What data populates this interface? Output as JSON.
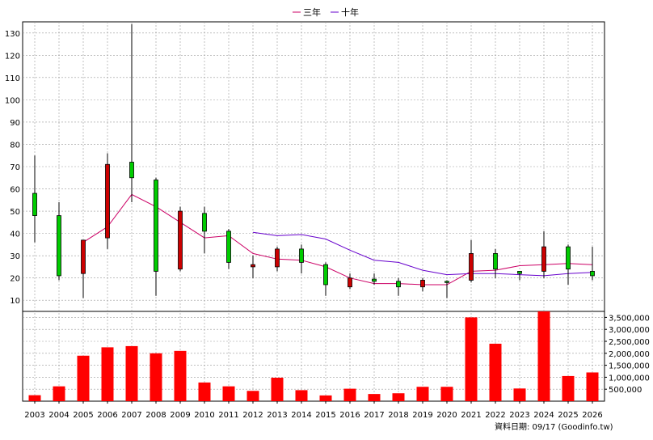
{
  "chart_data": {
    "type": "candlestick_with_volume",
    "legend": [
      {
        "label": "三年",
        "color": "#cc0066"
      },
      {
        "label": "十年",
        "color": "#6600cc"
      }
    ],
    "categories": [
      "2003",
      "2004",
      "2005",
      "2006",
      "2007",
      "2008",
      "2009",
      "2010",
      "2011",
      "2012",
      "2013",
      "2014",
      "2015",
      "2016",
      "2017",
      "2018",
      "2019",
      "2020",
      "2021",
      "2022",
      "2023",
      "2024",
      "2025",
      "2026"
    ],
    "price_axis": {
      "ticks": [
        10,
        20,
        30,
        40,
        50,
        60,
        70,
        80,
        90,
        100,
        110,
        120,
        130
      ],
      "ylim": [
        5,
        135
      ]
    },
    "volume_axis": {
      "ticks": [
        500000,
        1000000,
        1500000,
        2000000,
        2500000,
        3000000,
        3500000
      ],
      "tick_labels": [
        "500,000",
        "1,000,000",
        "1,500,000",
        "2,000,000",
        "2,500,000",
        "3,000,000",
        "3,500,000"
      ],
      "ylim": [
        0,
        3750000
      ]
    },
    "candles": [
      {
        "open": 48,
        "high": 75,
        "low": 36,
        "close": 58
      },
      {
        "open": 21,
        "high": 54,
        "low": 19,
        "close": 48
      },
      {
        "open": 37,
        "high": 37,
        "low": 11,
        "close": 22
      },
      {
        "open": 71,
        "high": 76,
        "low": 33,
        "close": 38
      },
      {
        "open": 65,
        "high": 134,
        "low": 54,
        "close": 72
      },
      {
        "open": 23,
        "high": 65,
        "low": 12,
        "close": 64
      },
      {
        "open": 50,
        "high": 52,
        "low": 23,
        "close": 24
      },
      {
        "open": 41,
        "high": 52,
        "low": 31,
        "close": 49
      },
      {
        "open": 27,
        "high": 42,
        "low": 24,
        "close": 41
      },
      {
        "open": 26,
        "high": 30,
        "low": 20,
        "close": 25
      },
      {
        "open": 33,
        "high": 34,
        "low": 23,
        "close": 25
      },
      {
        "open": 27,
        "high": 35,
        "low": 22,
        "close": 33
      },
      {
        "open": 17,
        "high": 27,
        "low": 12,
        "close": 26
      },
      {
        "open": 20,
        "high": 22,
        "low": 15,
        "close": 16
      },
      {
        "open": 18.5,
        "high": 22,
        "low": 17,
        "close": 19.5
      },
      {
        "open": 16,
        "high": 20,
        "low": 12,
        "close": 18.5
      },
      {
        "open": 19,
        "high": 20,
        "low": 14,
        "close": 16
      },
      {
        "open": 18,
        "high": 19,
        "low": 11,
        "close": 18.5
      },
      {
        "open": 31,
        "high": 37,
        "low": 18,
        "close": 19
      },
      {
        "open": 24,
        "high": 33,
        "low": 20,
        "close": 31
      },
      {
        "open": 22,
        "high": 23,
        "low": 19,
        "close": 23
      },
      {
        "open": 34,
        "high": 41,
        "low": 20,
        "close": 23
      },
      {
        "open": 24,
        "high": 35,
        "low": 17,
        "close": 34
      },
      {
        "open": 21,
        "high": 34,
        "low": 19,
        "close": 23
      }
    ],
    "three_year_line": [
      null,
      null,
      36,
      43,
      57.5,
      52,
      45,
      38,
      39,
      31,
      28.5,
      28,
      25,
      20,
      17.5,
      17.5,
      17,
      17,
      23,
      23.5,
      25.5,
      26,
      26.5,
      26
    ],
    "ten_year_line": [
      null,
      null,
      null,
      null,
      null,
      null,
      null,
      null,
      null,
      40.5,
      39,
      39.5,
      37.5,
      32.5,
      28,
      27,
      23.5,
      21.5,
      22,
      22,
      21.5,
      21,
      22,
      22.5
    ],
    "volumes": [
      250000,
      620000,
      1900000,
      2250000,
      2300000,
      2000000,
      2100000,
      780000,
      620000,
      430000,
      980000,
      460000,
      240000,
      520000,
      300000,
      330000,
      600000,
      600000,
      3500000,
      2400000,
      530000,
      3750000,
      1050000,
      1200000
    ],
    "footer": "資料日期: 09/17 (Goodinfo.tw)",
    "grid": true,
    "legend_placement": "top-center",
    "colors": {
      "up": "#00cc00",
      "down": "#cc0000",
      "volume": "#ff0000"
    }
  }
}
